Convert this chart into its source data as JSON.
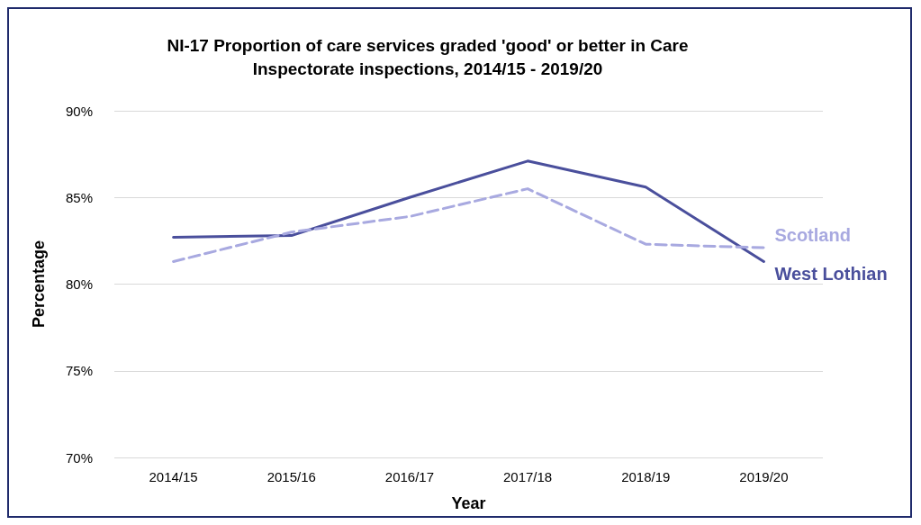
{
  "chart_data": {
    "type": "line",
    "title": "NI-17 Proportion of care services graded 'good' or better in Care\nInspectorate inspections, 2014/15 - 2019/20",
    "xlabel": "Year",
    "ylabel": "Percentage",
    "categories": [
      "2014/15",
      "2015/16",
      "2016/17",
      "2017/18",
      "2018/19",
      "2019/20"
    ],
    "series": [
      {
        "name": "West Lothian",
        "color": "#4a4f9c",
        "line_style": "solid",
        "values": [
          82.7,
          82.8,
          85.0,
          87.1,
          85.6,
          81.3
        ]
      },
      {
        "name": "Scotland",
        "color": "#a8a9e0",
        "line_style": "dashed",
        "values": [
          81.3,
          83.0,
          83.9,
          85.5,
          82.3,
          82.1
        ]
      }
    ],
    "ylim": [
      70,
      90
    ],
    "yticks": [
      {
        "value": 70,
        "label": "70%"
      },
      {
        "value": 75,
        "label": "75%"
      },
      {
        "value": 80,
        "label": "80%"
      },
      {
        "value": 85,
        "label": "85%"
      },
      {
        "value": 90,
        "label": "90%"
      }
    ],
    "grid": "y",
    "marker": "none"
  }
}
